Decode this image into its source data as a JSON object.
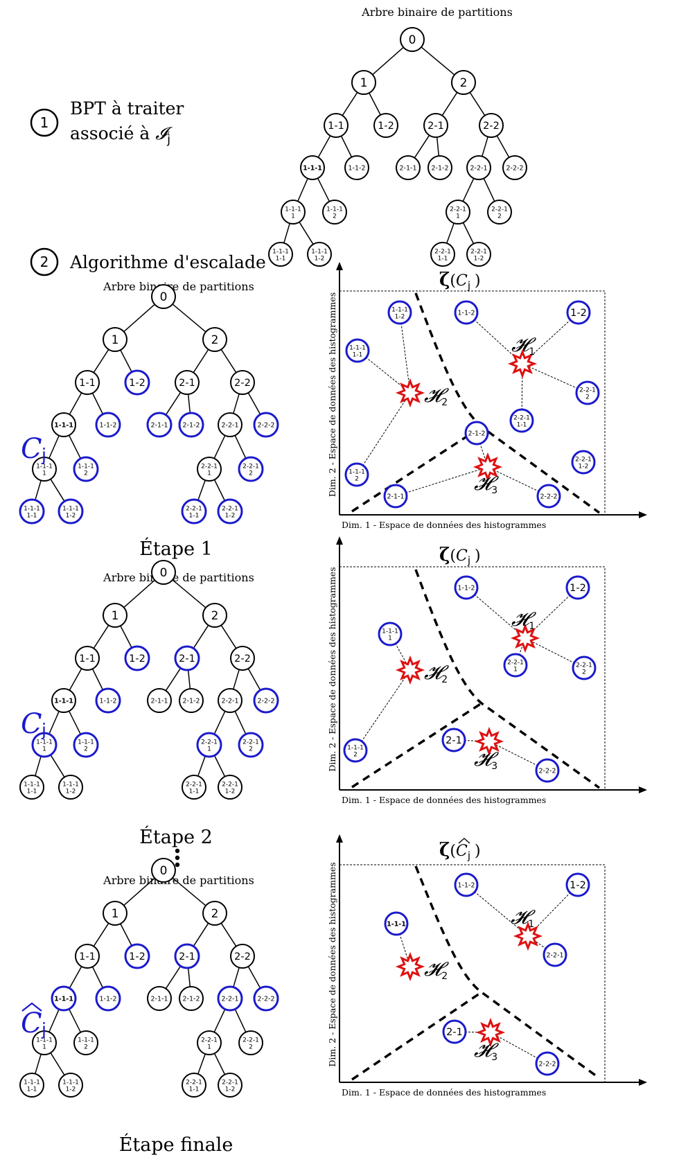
{
  "bpt_title": "Arbre binaire de partitions",
  "step1": {
    "num": "1",
    "line1": "BPT à traiter",
    "line2": "associé à ",
    "italic_symbol": "𝓘",
    "subscript": "j"
  },
  "step2": {
    "num": "2",
    "label": "Algorithme d'escalade"
  },
  "colors": {
    "blue": "#1a1acc",
    "red": "#dd1111",
    "black": "#000000"
  },
  "node_labels": {
    "n0": [
      "0"
    ],
    "n1": [
      "1"
    ],
    "n2": [
      "2"
    ],
    "n11": [
      "1-1"
    ],
    "n12": [
      "1-2"
    ],
    "n21": [
      "2-1"
    ],
    "n22": [
      "2-2"
    ],
    "n111": [
      "1-1-1"
    ],
    "n112": [
      "1-1-2"
    ],
    "n211": [
      "2-1-1"
    ],
    "n212": [
      "2-1-2"
    ],
    "n221": [
      "2-2-1"
    ],
    "n222": [
      "2-2-2"
    ],
    "n1111": [
      "1-1-1",
      "1"
    ],
    "n1112": [
      "1-1-1",
      "2"
    ],
    "n2211": [
      "2-2-1",
      "1"
    ],
    "n2212": [
      "2-2-1",
      "2"
    ],
    "n11111": [
      "1-1-1",
      "1-1"
    ],
    "n11112": [
      "1-1-1",
      "1-2"
    ],
    "n22111": [
      "2-2-1",
      "1-1"
    ],
    "n22112": [
      "2-2-1",
      "1-2"
    ]
  },
  "top_tree": {
    "blue_nodes": []
  },
  "stages": [
    {
      "label": "Étape 1",
      "cut_symbol": "C",
      "cut_sub": "j",
      "cut_hat": false,
      "blue_nodes": [
        "n12",
        "n112",
        "n211",
        "n212",
        "n222",
        "n1112",
        "n2212",
        "n11111",
        "n11112",
        "n22111",
        "n22112"
      ],
      "feature_space": {
        "zeta_arg": "C",
        "zeta_sub": "j",
        "hat": false,
        "xlabel": "Dim. 1 - Espace de données des histogrammes",
        "ylabel": "Dim. 2 - Espace de données des histogrammes",
        "centroids": [
          {
            "name": "𝓗",
            "sub": "1"
          },
          {
            "name": "𝓗",
            "sub": "2"
          },
          {
            "name": "𝓗",
            "sub": "3"
          }
        ],
        "points": [
          {
            "label": [
              "1-1-1",
              "1-2"
            ],
            "cluster": 2
          },
          {
            "label": [
              "1-1-1",
              "1-1"
            ],
            "cluster": 2
          },
          {
            "label": [
              "1-1-1",
              "2"
            ],
            "cluster": 2
          },
          {
            "label": [
              "1-1-2"
            ],
            "cluster": 1
          },
          {
            "label": [
              "1-2"
            ],
            "cluster": 1
          },
          {
            "label": [
              "2-2-1",
              "2"
            ],
            "cluster": 1
          },
          {
            "label": [
              "2-2-1",
              "1-1"
            ],
            "cluster": 1
          },
          {
            "label": [
              "2-1-2"
            ],
            "cluster": 3
          },
          {
            "label": [
              "2-1-1"
            ],
            "cluster": 3
          },
          {
            "label": [
              "2-2-2"
            ],
            "cluster": 3
          },
          {
            "label": [
              "2-2-1",
              "1-2"
            ],
            "cluster": 0
          }
        ]
      }
    },
    {
      "label": "Étape 2",
      "cut_symbol": "C",
      "cut_sub": "j",
      "cut_hat": false,
      "blue_nodes": [
        "n12",
        "n21",
        "n112",
        "n222",
        "n1111",
        "n1112",
        "n2211",
        "n2212"
      ],
      "feature_space": {
        "zeta_arg": "C",
        "zeta_sub": "j",
        "hat": false,
        "xlabel": "Dim. 1 - Espace de données des histogrammes",
        "ylabel": "Dim. 2 - Espace de données des histogrammes",
        "centroids": [
          {
            "name": "𝓗",
            "sub": "1"
          },
          {
            "name": "𝓗",
            "sub": "2"
          },
          {
            "name": "𝓗",
            "sub": "3"
          }
        ],
        "points": [
          {
            "label": [
              "1-1-1",
              "1"
            ],
            "cluster": 2
          },
          {
            "label": [
              "1-1-1",
              "2"
            ],
            "cluster": 2
          },
          {
            "label": [
              "1-1-2"
            ],
            "cluster": 1
          },
          {
            "label": [
              "1-2"
            ],
            "cluster": 1
          },
          {
            "label": [
              "2-2-1",
              "1"
            ],
            "cluster": 1
          },
          {
            "label": [
              "2-2-1",
              "2"
            ],
            "cluster": 1
          },
          {
            "label": [
              "2-1"
            ],
            "cluster": 3
          },
          {
            "label": [
              "2-2-2"
            ],
            "cluster": 3
          }
        ]
      }
    },
    {
      "label": "Étape finale",
      "cut_symbol": "C",
      "cut_sub": "j",
      "cut_hat": true,
      "blue_nodes": [
        "n12",
        "n21",
        "n111",
        "n112",
        "n221",
        "n222"
      ],
      "feature_space": {
        "zeta_arg": "C",
        "zeta_sub": "j",
        "hat": true,
        "xlabel": "Dim. 1 - Espace de données des histogrammes",
        "ylabel": "Dim. 2 - Espace de données des histogrammes",
        "centroids": [
          {
            "name": "𝓗",
            "sub": "1"
          },
          {
            "name": "𝓗",
            "sub": "2"
          },
          {
            "name": "𝓗",
            "sub": "3"
          }
        ],
        "points": [
          {
            "label": [
              "1-1-2"
            ],
            "cluster": 1
          },
          {
            "label": [
              "1-2"
            ],
            "cluster": 1
          },
          {
            "label": [
              "2-2-1"
            ],
            "cluster": 1
          },
          {
            "label": [
              "1-1-1"
            ],
            "cluster": 2
          },
          {
            "label": [
              "2-1"
            ],
            "cluster": 3
          },
          {
            "label": [
              "2-2-2"
            ],
            "cluster": 3
          }
        ]
      }
    }
  ]
}
